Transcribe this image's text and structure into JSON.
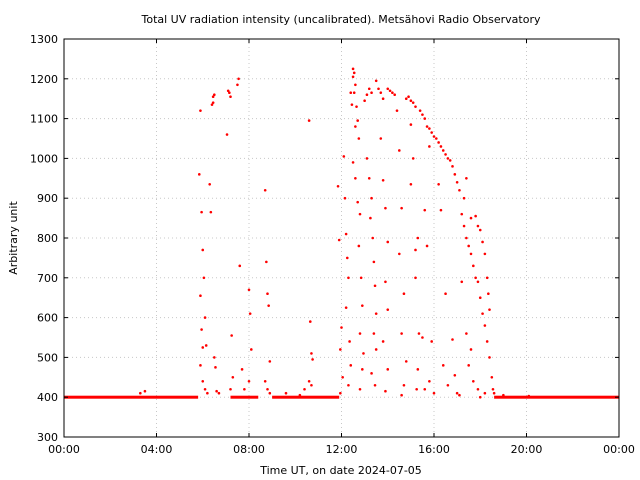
{
  "chart_data": {
    "type": "scatter",
    "title": "Total UV radiation intensity (uncalibrated). Metsähovi Radio Observatory",
    "xlabel": "Time UT, on date 2024-07-05",
    "ylabel": "Arbitrary unit",
    "xlim": [
      0,
      24
    ],
    "ylim": [
      300,
      1300
    ],
    "xticks": [
      {
        "value": 0,
        "label": "00:00"
      },
      {
        "value": 4,
        "label": "04:00"
      },
      {
        "value": 8,
        "label": "08:00"
      },
      {
        "value": 12,
        "label": "12:00"
      },
      {
        "value": 16,
        "label": "16:00"
      },
      {
        "value": 20,
        "label": "20:00"
      },
      {
        "value": 24,
        "label": "00:00"
      }
    ],
    "yticks": [
      300,
      400,
      500,
      600,
      700,
      800,
      900,
      1000,
      1100,
      1200,
      1300
    ],
    "grid": true,
    "baseline": {
      "y": 400,
      "x_ranges": [
        [
          0,
          5.8
        ],
        [
          7.2,
          8.4
        ],
        [
          9.0,
          11.9
        ],
        [
          18.6,
          24
        ]
      ]
    },
    "colors": {
      "points": "#ff0000",
      "grid": "#c8c8c8",
      "axis": "#000000"
    },
    "series": [
      {
        "points": [
          [
            3.3,
            410
          ],
          [
            3.5,
            415
          ],
          [
            5.85,
            960
          ],
          [
            5.9,
            1120
          ],
          [
            5.95,
            865
          ],
          [
            6.0,
            770
          ],
          [
            5.9,
            655
          ],
          [
            5.95,
            570
          ],
          [
            6.0,
            525
          ],
          [
            5.9,
            480
          ],
          [
            6.05,
            700
          ],
          [
            6.1,
            600
          ],
          [
            6.15,
            530
          ],
          [
            6.0,
            440
          ],
          [
            6.1,
            420
          ],
          [
            6.2,
            410
          ],
          [
            6.3,
            935
          ],
          [
            6.35,
            865
          ],
          [
            6.4,
            1135
          ],
          [
            6.45,
            1155
          ],
          [
            6.5,
            1160
          ],
          [
            6.45,
            1140
          ],
          [
            6.5,
            500
          ],
          [
            6.55,
            475
          ],
          [
            6.6,
            415
          ],
          [
            6.7,
            410
          ],
          [
            7.05,
            1060
          ],
          [
            7.1,
            1170
          ],
          [
            7.15,
            1165
          ],
          [
            7.2,
            1155
          ],
          [
            7.25,
            555
          ],
          [
            7.3,
            450
          ],
          [
            7.2,
            420
          ],
          [
            7.5,
            1185
          ],
          [
            7.55,
            1200
          ],
          [
            7.6,
            730
          ],
          [
            7.7,
            470
          ],
          [
            7.8,
            420
          ],
          [
            8.0,
            670
          ],
          [
            8.05,
            610
          ],
          [
            8.1,
            520
          ],
          [
            8.0,
            440
          ],
          [
            8.7,
            920
          ],
          [
            8.75,
            740
          ],
          [
            8.8,
            660
          ],
          [
            8.85,
            630
          ],
          [
            8.9,
            490
          ],
          [
            8.7,
            440
          ],
          [
            8.8,
            420
          ],
          [
            8.9,
            410
          ],
          [
            9.6,
            410
          ],
          [
            10.2,
            405
          ],
          [
            10.4,
            420
          ],
          [
            10.6,
            1095
          ],
          [
            10.65,
            590
          ],
          [
            10.7,
            510
          ],
          [
            10.75,
            495
          ],
          [
            10.6,
            440
          ],
          [
            10.7,
            430
          ],
          [
            11.85,
            930
          ],
          [
            11.9,
            795
          ],
          [
            12.0,
            575
          ],
          [
            11.95,
            520
          ],
          [
            12.05,
            450
          ],
          [
            11.95,
            410
          ],
          [
            12.1,
            1005
          ],
          [
            12.15,
            900
          ],
          [
            12.2,
            810
          ],
          [
            12.25,
            750
          ],
          [
            12.3,
            700
          ],
          [
            12.2,
            625
          ],
          [
            12.35,
            540
          ],
          [
            12.4,
            480
          ],
          [
            12.3,
            430
          ],
          [
            12.4,
            1165
          ],
          [
            12.45,
            1135
          ],
          [
            12.5,
            1205
          ],
          [
            12.5,
            1225
          ],
          [
            12.55,
            1215
          ],
          [
            12.6,
            1185
          ],
          [
            12.55,
            1165
          ],
          [
            12.65,
            1130
          ],
          [
            12.7,
            1095
          ],
          [
            12.6,
            1080
          ],
          [
            12.75,
            1050
          ],
          [
            12.5,
            990
          ],
          [
            12.6,
            950
          ],
          [
            12.7,
            890
          ],
          [
            12.8,
            860
          ],
          [
            12.75,
            780
          ],
          [
            12.85,
            700
          ],
          [
            12.9,
            630
          ],
          [
            12.8,
            560
          ],
          [
            12.95,
            510
          ],
          [
            12.9,
            470
          ],
          [
            12.8,
            420
          ],
          [
            13.0,
            1145
          ],
          [
            13.1,
            1160
          ],
          [
            13.2,
            1175
          ],
          [
            13.3,
            1165
          ],
          [
            13.1,
            1000
          ],
          [
            13.2,
            950
          ],
          [
            13.3,
            900
          ],
          [
            13.25,
            850
          ],
          [
            13.35,
            800
          ],
          [
            13.4,
            740
          ],
          [
            13.45,
            680
          ],
          [
            13.5,
            610
          ],
          [
            13.4,
            560
          ],
          [
            13.5,
            520
          ],
          [
            13.3,
            460
          ],
          [
            13.45,
            430
          ],
          [
            13.5,
            1195
          ],
          [
            13.6,
            1175
          ],
          [
            13.7,
            1165
          ],
          [
            13.8,
            1150
          ],
          [
            13.7,
            1050
          ],
          [
            13.8,
            945
          ],
          [
            13.9,
            875
          ],
          [
            14.0,
            790
          ],
          [
            13.9,
            690
          ],
          [
            14.0,
            620
          ],
          [
            13.8,
            540
          ],
          [
            14.0,
            470
          ],
          [
            13.9,
            415
          ],
          [
            14.0,
            1175
          ],
          [
            14.1,
            1170
          ],
          [
            14.2,
            1165
          ],
          [
            14.3,
            1160
          ],
          [
            14.4,
            1120
          ],
          [
            14.5,
            1020
          ],
          [
            14.6,
            875
          ],
          [
            14.5,
            760
          ],
          [
            14.7,
            660
          ],
          [
            14.6,
            560
          ],
          [
            14.8,
            490
          ],
          [
            14.7,
            430
          ],
          [
            14.6,
            405
          ],
          [
            14.8,
            1150
          ],
          [
            14.9,
            1155
          ],
          [
            15.0,
            1145
          ],
          [
            15.1,
            1140
          ],
          [
            15.2,
            1130
          ],
          [
            15.0,
            1085
          ],
          [
            15.1,
            1000
          ],
          [
            15.0,
            935
          ],
          [
            15.2,
            770
          ],
          [
            15.3,
            800
          ],
          [
            15.2,
            700
          ],
          [
            15.35,
            560
          ],
          [
            15.3,
            470
          ],
          [
            15.25,
            420
          ],
          [
            15.4,
            1120
          ],
          [
            15.5,
            1110
          ],
          [
            15.6,
            1100
          ],
          [
            15.7,
            1080
          ],
          [
            15.8,
            1075
          ],
          [
            15.9,
            1065
          ],
          [
            16.0,
            1055
          ],
          [
            15.8,
            1030
          ],
          [
            15.6,
            870
          ],
          [
            15.7,
            780
          ],
          [
            15.5,
            550
          ],
          [
            15.9,
            540
          ],
          [
            15.8,
            440
          ],
          [
            16.0,
            410
          ],
          [
            15.6,
            420
          ],
          [
            16.1,
            1050
          ],
          [
            16.2,
            1040
          ],
          [
            16.3,
            1030
          ],
          [
            16.4,
            1020
          ],
          [
            16.5,
            1010
          ],
          [
            16.6,
            1000
          ],
          [
            16.7,
            995
          ],
          [
            16.8,
            980
          ],
          [
            16.9,
            960
          ],
          [
            17.0,
            940
          ],
          [
            17.1,
            920
          ],
          [
            16.2,
            935
          ],
          [
            16.3,
            870
          ],
          [
            16.5,
            660
          ],
          [
            16.4,
            480
          ],
          [
            16.6,
            430
          ],
          [
            16.8,
            545
          ],
          [
            16.9,
            455
          ],
          [
            17.0,
            410
          ],
          [
            17.1,
            405
          ],
          [
            17.2,
            860
          ],
          [
            17.3,
            830
          ],
          [
            17.4,
            800
          ],
          [
            17.5,
            780
          ],
          [
            17.6,
            760
          ],
          [
            17.7,
            730
          ],
          [
            17.8,
            700
          ],
          [
            17.9,
            690
          ],
          [
            18.0,
            650
          ],
          [
            18.1,
            610
          ],
          [
            18.2,
            580
          ],
          [
            18.3,
            540
          ],
          [
            18.4,
            500
          ],
          [
            18.5,
            450
          ],
          [
            18.55,
            420
          ],
          [
            17.3,
            900
          ],
          [
            17.4,
            950
          ],
          [
            17.6,
            850
          ],
          [
            17.8,
            855
          ],
          [
            17.9,
            830
          ],
          [
            18.0,
            820
          ],
          [
            18.1,
            790
          ],
          [
            18.2,
            760
          ],
          [
            18.3,
            700
          ],
          [
            18.35,
            660
          ],
          [
            18.4,
            620
          ],
          [
            17.2,
            690
          ],
          [
            17.4,
            560
          ],
          [
            17.6,
            520
          ],
          [
            17.5,
            480
          ],
          [
            17.7,
            440
          ],
          [
            17.9,
            420
          ],
          [
            18.0,
            400
          ],
          [
            18.2,
            410
          ],
          [
            18.6,
            410
          ],
          [
            19.0,
            405
          ],
          [
            20.1,
            403
          ]
        ]
      }
    ]
  }
}
